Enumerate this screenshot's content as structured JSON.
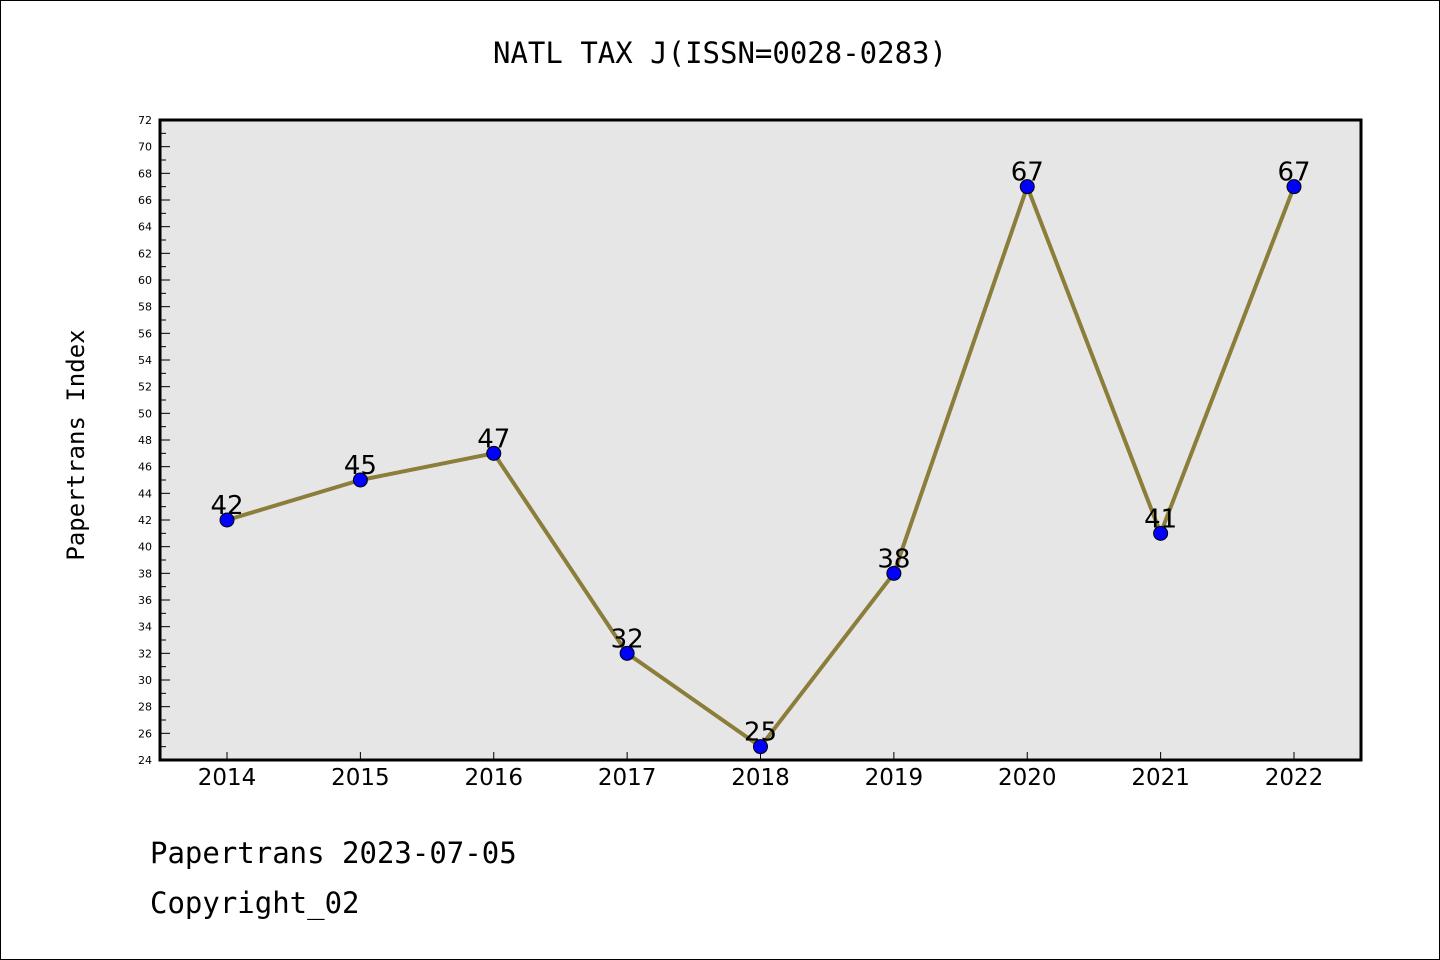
{
  "title": "NATL TAX J(ISSN=0028-0283)",
  "footer": {
    "line1": "Papertrans 2023-07-05",
    "line2": "Copyright_02"
  },
  "colors": {
    "plot_background": "#e6e6e6",
    "line": "#8b7d3a",
    "marker": "#0000ff"
  },
  "chart_data": {
    "type": "line",
    "title": "NATL TAX J(ISSN=0028-0283)",
    "xlabel": "",
    "ylabel": "Papertrans Index",
    "categories": [
      "2014",
      "2015",
      "2016",
      "2017",
      "2018",
      "2019",
      "2020",
      "2021",
      "2022"
    ],
    "series": [
      {
        "values": [
          42,
          45,
          47,
          32,
          25,
          38,
          67,
          41,
          67
        ]
      }
    ],
    "ylim": [
      24,
      72
    ],
    "yticks": [
      24,
      26,
      28,
      30,
      32,
      34,
      36,
      38,
      40,
      42,
      44,
      46,
      48,
      50,
      52,
      54,
      56,
      58,
      60,
      62,
      64,
      66,
      68,
      70,
      72
    ],
    "data_labels": true,
    "grid": false,
    "legend": "none"
  }
}
